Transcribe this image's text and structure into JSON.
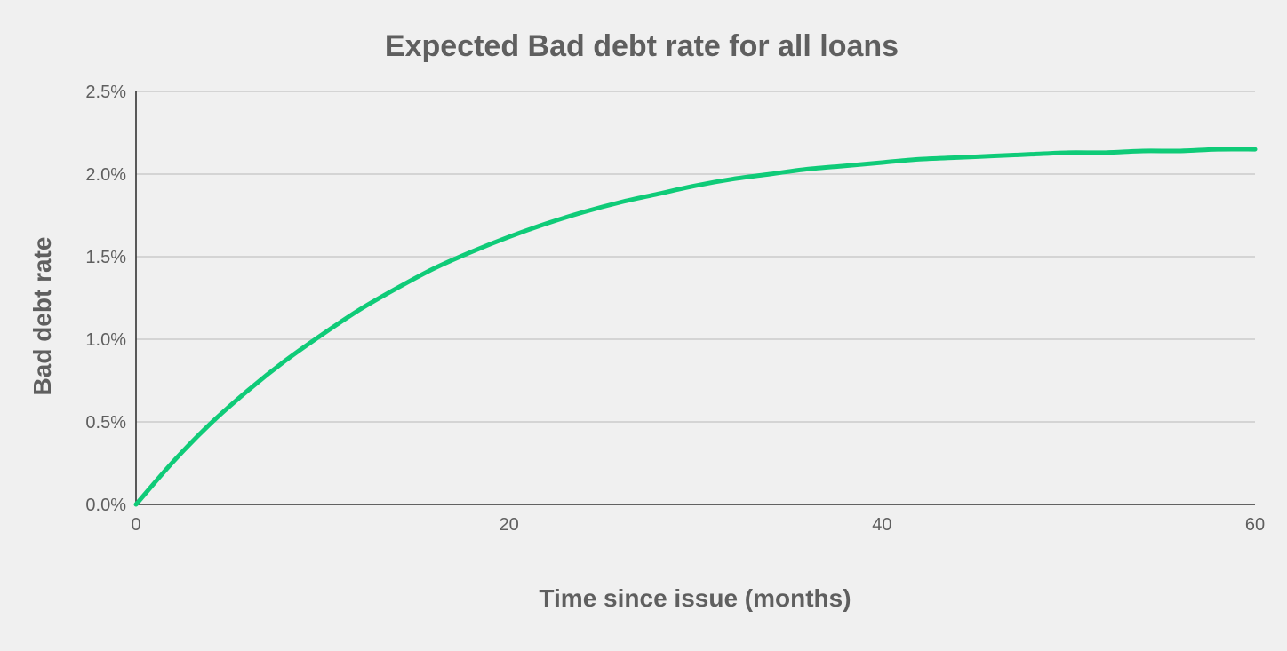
{
  "chart_data": {
    "type": "line",
    "title": "Expected Bad debt rate for all loans",
    "xlabel": "Time since issue (months)",
    "ylabel": "Bad debt rate",
    "xlim": [
      0,
      60
    ],
    "ylim": [
      0,
      0.025
    ],
    "x_ticks": [
      0,
      20,
      40,
      60
    ],
    "x_tick_labels": [
      "0",
      "20",
      "40",
      "60"
    ],
    "y_ticks": [
      0,
      0.005,
      0.01,
      0.015,
      0.02,
      0.025
    ],
    "y_tick_labels": [
      "0.0%",
      "0.5%",
      "1.0%",
      "1.5%",
      "2.0%",
      "2.5%"
    ],
    "grid": true,
    "series": [
      {
        "color": "#0fcb78",
        "x": [
          0,
          2,
          4,
          6,
          8,
          10,
          12,
          14,
          16,
          18,
          20,
          22,
          24,
          26,
          28,
          30,
          32,
          34,
          36,
          38,
          40,
          42,
          44,
          46,
          48,
          50,
          52,
          54,
          56,
          58,
          60
        ],
        "y": [
          0.0,
          0.0026,
          0.0049,
          0.0069,
          0.0087,
          0.0103,
          0.0118,
          0.0131,
          0.0143,
          0.0153,
          0.0162,
          0.017,
          0.0177,
          0.0183,
          0.0188,
          0.0193,
          0.0197,
          0.02,
          0.0203,
          0.0205,
          0.0207,
          0.0209,
          0.021,
          0.0211,
          0.0212,
          0.0213,
          0.0213,
          0.0214,
          0.0214,
          0.0215,
          0.0215
        ]
      }
    ]
  }
}
